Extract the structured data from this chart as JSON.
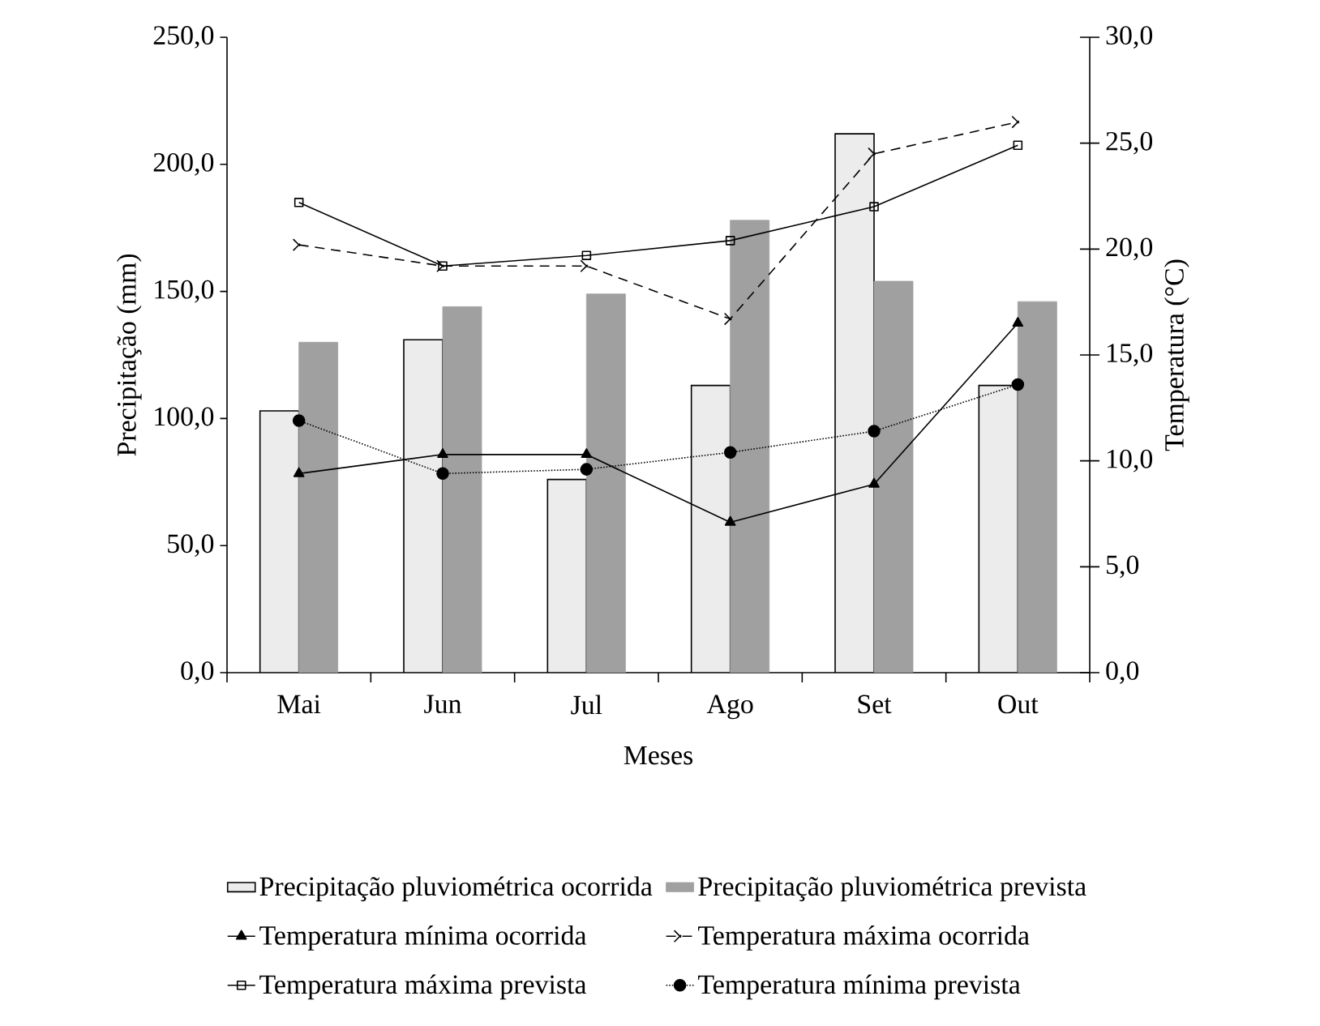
{
  "chart_data": {
    "type": "bar",
    "xlabel": "Meses",
    "ylabel": "Precipitação (mm)",
    "y2label": "Temperatura (°C)",
    "categories": [
      "Mai",
      "Jun",
      "Jul",
      "Ago",
      "Set",
      "Out"
    ],
    "ylim": [
      0,
      250
    ],
    "yticks": [
      {
        "value": 0,
        "label": "0,0"
      },
      {
        "value": 50,
        "label": "50,0"
      },
      {
        "value": 100,
        "label": "100,0"
      },
      {
        "value": 150,
        "label": "150,0"
      },
      {
        "value": 200,
        "label": "200,0"
      },
      {
        "value": 250,
        "label": "250,0"
      }
    ],
    "y2lim": [
      0,
      30
    ],
    "y2ticks": [
      {
        "value": 0,
        "label": "0,0"
      },
      {
        "value": 5,
        "label": "5,0"
      },
      {
        "value": 10,
        "label": "10,0"
      },
      {
        "value": 15,
        "label": "15,0"
      },
      {
        "value": 20,
        "label": "20,0"
      },
      {
        "value": 25,
        "label": "25,0"
      },
      {
        "value": 30,
        "label": "30,0"
      }
    ],
    "legend": "bottom",
    "grid": false,
    "series": [
      {
        "name": "Precipitação pluviométrica ocorrida",
        "color": "#ececec",
        "values": [
          103,
          131,
          76,
          113,
          212,
          113
        ]
      },
      {
        "name": "Precipitação pluviométrica prevista",
        "color": "#a0a0a0",
        "values": [
          130,
          144,
          149,
          178,
          154,
          146
        ]
      },
      {
        "name": "Temperatura mínima ocorrida",
        "type": "line",
        "axis": "y2",
        "color": "#000000",
        "marker": "triangle",
        "line_style": "solid",
        "values": [
          9.4,
          10.3,
          10.3,
          7.1,
          8.9,
          16.5
        ]
      },
      {
        "name": "Temperatura máxima ocorrida",
        "type": "line",
        "axis": "y2",
        "color": "#000000",
        "marker": "cross",
        "line_style": "dashed",
        "values": [
          20.2,
          19.2,
          19.2,
          16.7,
          24.5,
          26.0
        ]
      },
      {
        "name": "Temperatura máxima prevista",
        "type": "line",
        "axis": "y2",
        "color": "#000000",
        "marker": "square",
        "line_style": "solid",
        "values": [
          22.2,
          19.2,
          19.7,
          20.4,
          22.0,
          24.9
        ]
      },
      {
        "name": "Temperatura mínima prevista",
        "type": "line",
        "axis": "y2",
        "color": "#000000",
        "marker": "circle",
        "line_style": "dotted",
        "values": [
          11.9,
          9.4,
          9.6,
          10.4,
          11.4,
          13.6
        ]
      }
    ]
  }
}
